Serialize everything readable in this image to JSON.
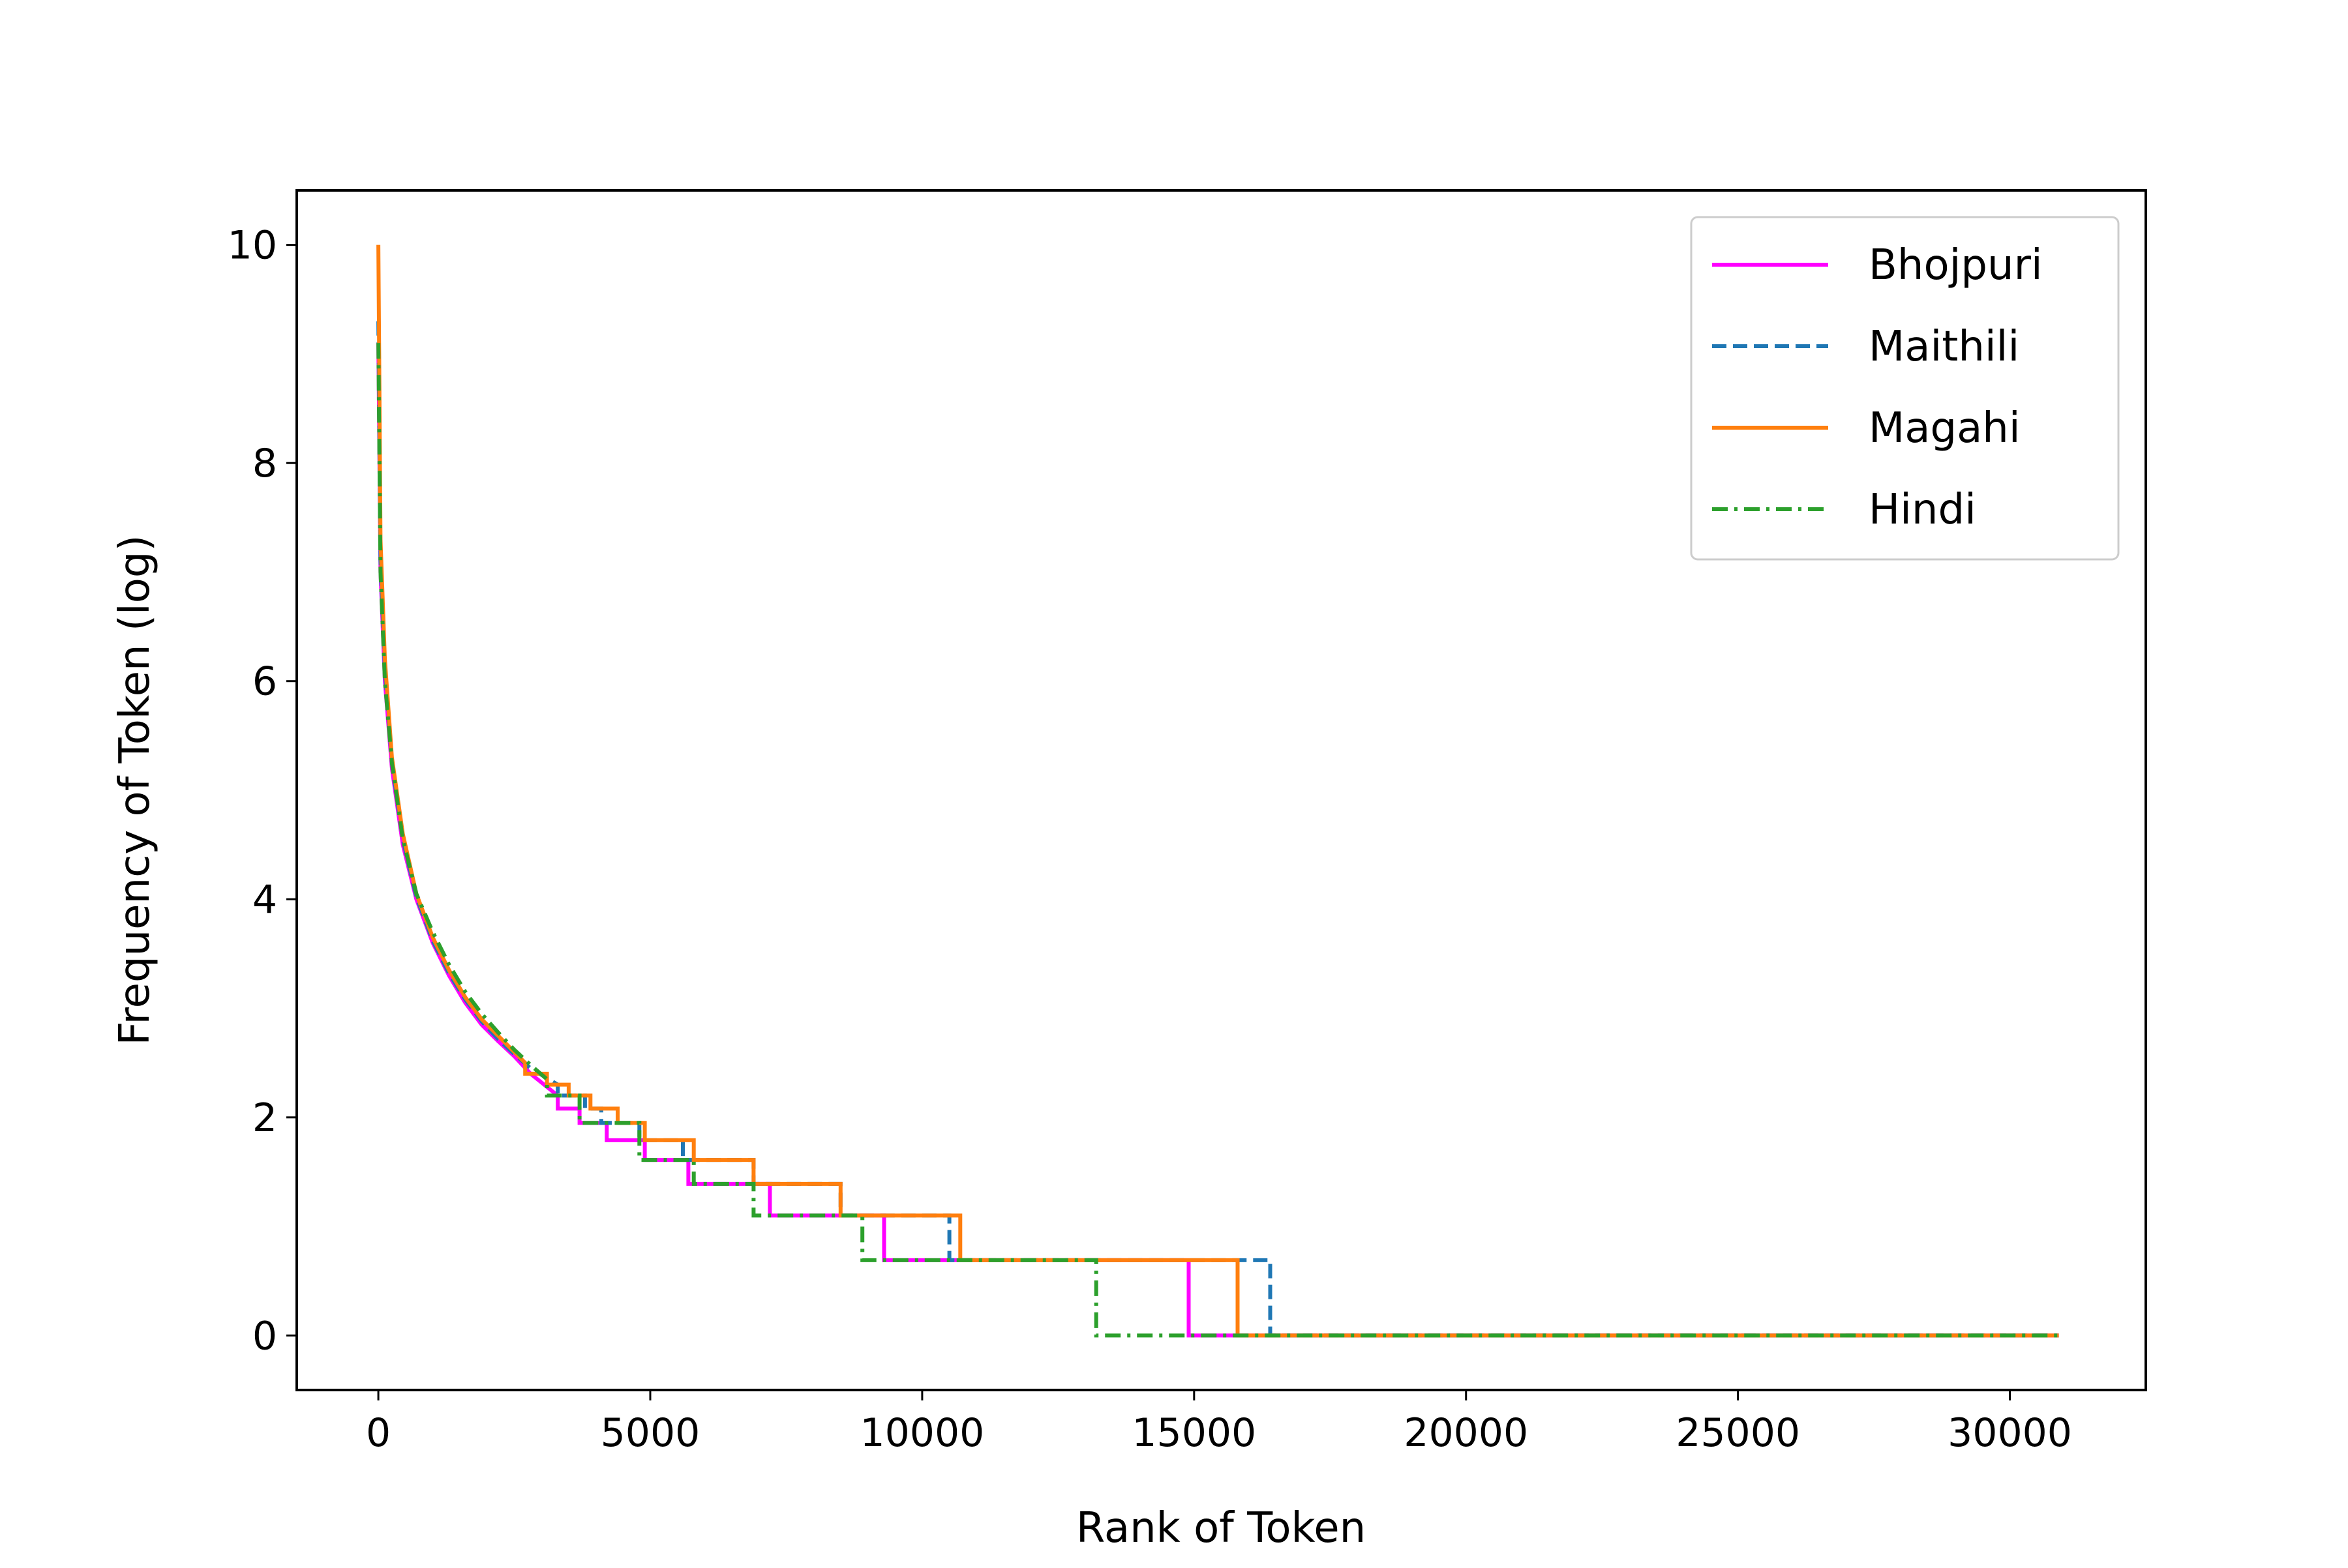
{
  "chart_data": {
    "type": "line",
    "title": "",
    "xlabel": "Rank of Token",
    "ylabel": "Frequency of Token (log)",
    "xlim": [
      -1500,
      32500
    ],
    "ylim": [
      -0.5,
      10.5
    ],
    "xticks": [
      0,
      5000,
      10000,
      15000,
      20000,
      25000,
      30000
    ],
    "xtick_labels": [
      "0",
      "5000",
      "10000",
      "15000",
      "20000",
      "25000",
      "30000"
    ],
    "yticks": [
      0,
      2,
      4,
      6,
      8,
      10
    ],
    "ytick_labels": [
      "0",
      "2",
      "4",
      "6",
      "8",
      "10"
    ],
    "grid": false,
    "legend_position": "top-right",
    "series": [
      {
        "name": "Bhojpuri",
        "color": "#ff00ff",
        "dash": "solid",
        "points": [
          [
            0,
            9.1
          ],
          [
            40,
            7.0
          ],
          [
            120,
            6.0
          ],
          [
            250,
            5.2
          ],
          [
            450,
            4.5
          ],
          [
            700,
            4.0
          ],
          [
            1000,
            3.6
          ],
          [
            1300,
            3.3
          ],
          [
            1600,
            3.05
          ],
          [
            1900,
            2.85
          ],
          [
            2200,
            2.7
          ],
          [
            2500,
            2.56
          ],
          [
            2800,
            2.4
          ],
          [
            3300,
            2.2
          ],
          [
            3300,
            2.08
          ],
          [
            3700,
            2.08
          ],
          [
            3700,
            1.95
          ],
          [
            4200,
            1.95
          ],
          [
            4200,
            1.79
          ],
          [
            4900,
            1.79
          ],
          [
            4900,
            1.61
          ],
          [
            5700,
            1.61
          ],
          [
            5700,
            1.39
          ],
          [
            7200,
            1.39
          ],
          [
            7200,
            1.1
          ],
          [
            9300,
            1.1
          ],
          [
            9300,
            0.69
          ],
          [
            14900,
            0.69
          ],
          [
            14900,
            0.0
          ],
          [
            30900,
            0.0
          ]
        ]
      },
      {
        "name": "Maithili",
        "color": "#1f77b4",
        "dash": "dashed",
        "points": [
          [
            0,
            9.3
          ],
          [
            40,
            7.1
          ],
          [
            120,
            6.1
          ],
          [
            250,
            5.25
          ],
          [
            450,
            4.55
          ],
          [
            700,
            4.02
          ],
          [
            1000,
            3.62
          ],
          [
            1300,
            3.32
          ],
          [
            1600,
            3.08
          ],
          [
            1900,
            2.88
          ],
          [
            2200,
            2.72
          ],
          [
            2500,
            2.58
          ],
          [
            2800,
            2.45
          ],
          [
            3300,
            2.3
          ],
          [
            3300,
            2.2
          ],
          [
            3800,
            2.2
          ],
          [
            3800,
            2.08
          ],
          [
            4100,
            2.08
          ],
          [
            4100,
            1.95
          ],
          [
            4800,
            1.95
          ],
          [
            4800,
            1.79
          ],
          [
            5600,
            1.79
          ],
          [
            5600,
            1.61
          ],
          [
            6900,
            1.61
          ],
          [
            6900,
            1.39
          ],
          [
            8500,
            1.39
          ],
          [
            8500,
            1.1
          ],
          [
            10500,
            1.1
          ],
          [
            10500,
            0.69
          ],
          [
            16400,
            0.69
          ],
          [
            16400,
            0.0
          ],
          [
            30900,
            0.0
          ]
        ]
      },
      {
        "name": "Magahi",
        "color": "#ff7f0e",
        "dash": "solid",
        "points": [
          [
            0,
            10.0
          ],
          [
            40,
            7.3
          ],
          [
            120,
            6.2
          ],
          [
            250,
            5.3
          ],
          [
            450,
            4.6
          ],
          [
            700,
            4.05
          ],
          [
            1000,
            3.65
          ],
          [
            1300,
            3.35
          ],
          [
            1600,
            3.1
          ],
          [
            1900,
            2.9
          ],
          [
            2200,
            2.75
          ],
          [
            2500,
            2.6
          ],
          [
            2700,
            2.5
          ],
          [
            2700,
            2.4
          ],
          [
            3100,
            2.4
          ],
          [
            3100,
            2.3
          ],
          [
            3500,
            2.3
          ],
          [
            3500,
            2.2
          ],
          [
            3900,
            2.2
          ],
          [
            3900,
            2.08
          ],
          [
            4400,
            2.08
          ],
          [
            4400,
            1.95
          ],
          [
            4900,
            1.95
          ],
          [
            4900,
            1.79
          ],
          [
            5800,
            1.79
          ],
          [
            5800,
            1.61
          ],
          [
            6900,
            1.61
          ],
          [
            6900,
            1.39
          ],
          [
            8500,
            1.39
          ],
          [
            8500,
            1.1
          ],
          [
            10700,
            1.1
          ],
          [
            10700,
            0.69
          ],
          [
            15800,
            0.69
          ],
          [
            15800,
            0.0
          ],
          [
            30900,
            0.0
          ]
        ]
      },
      {
        "name": "Hindi",
        "color": "#2ca02c",
        "dash": "dashdot",
        "points": [
          [
            0,
            9.1
          ],
          [
            40,
            7.0
          ],
          [
            120,
            6.0
          ],
          [
            250,
            5.25
          ],
          [
            450,
            4.55
          ],
          [
            700,
            4.05
          ],
          [
            1000,
            3.7
          ],
          [
            1300,
            3.4
          ],
          [
            1600,
            3.15
          ],
          [
            1900,
            2.95
          ],
          [
            2200,
            2.78
          ],
          [
            2500,
            2.62
          ],
          [
            2800,
            2.48
          ],
          [
            3100,
            2.35
          ],
          [
            3100,
            2.2
          ],
          [
            3700,
            2.2
          ],
          [
            3700,
            2.08
          ],
          [
            3700,
            1.95
          ],
          [
            4800,
            1.95
          ],
          [
            4800,
            1.79
          ],
          [
            4800,
            1.61
          ],
          [
            5800,
            1.61
          ],
          [
            5800,
            1.39
          ],
          [
            6900,
            1.39
          ],
          [
            6900,
            1.1
          ],
          [
            8900,
            1.1
          ],
          [
            8900,
            0.69
          ],
          [
            13200,
            0.69
          ],
          [
            13200,
            0.0
          ],
          [
            30900,
            0.0
          ]
        ]
      }
    ]
  }
}
